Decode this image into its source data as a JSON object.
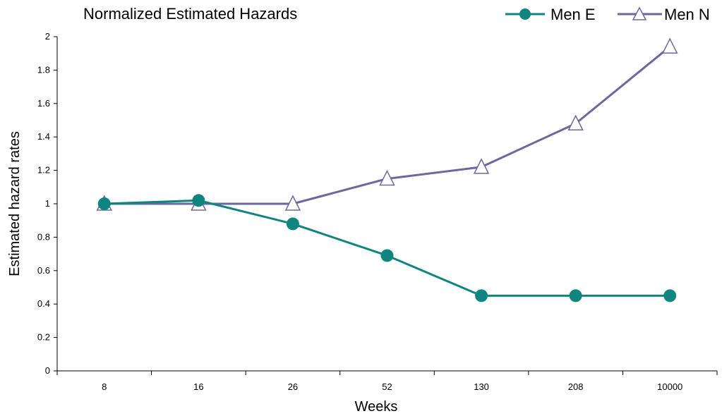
{
  "chart_data": {
    "type": "line",
    "title": "Normalized Estimated Hazards",
    "xlabel": "Weeks",
    "ylabel": "Estimated hazard rates",
    "categories": [
      "8",
      "16",
      "26",
      "52",
      "130",
      "208",
      "10000"
    ],
    "ylim": [
      0,
      2
    ],
    "yticks": [
      "0",
      "0.2",
      "0.4",
      "0.6",
      "0.8",
      "1",
      "1.2",
      "1.4",
      "1.6",
      "1.8",
      "2"
    ],
    "grid": false,
    "legend_position": "top-right",
    "series": [
      {
        "name": "Men E",
        "marker": "circle",
        "color": "#10857f",
        "values": [
          1.0,
          1.02,
          0.88,
          0.69,
          0.45,
          0.45,
          0.45
        ]
      },
      {
        "name": "Men N",
        "marker": "triangle",
        "color": "#6b68a0",
        "values": [
          1.0,
          1.0,
          1.0,
          1.15,
          1.22,
          1.48,
          1.94
        ]
      }
    ]
  }
}
